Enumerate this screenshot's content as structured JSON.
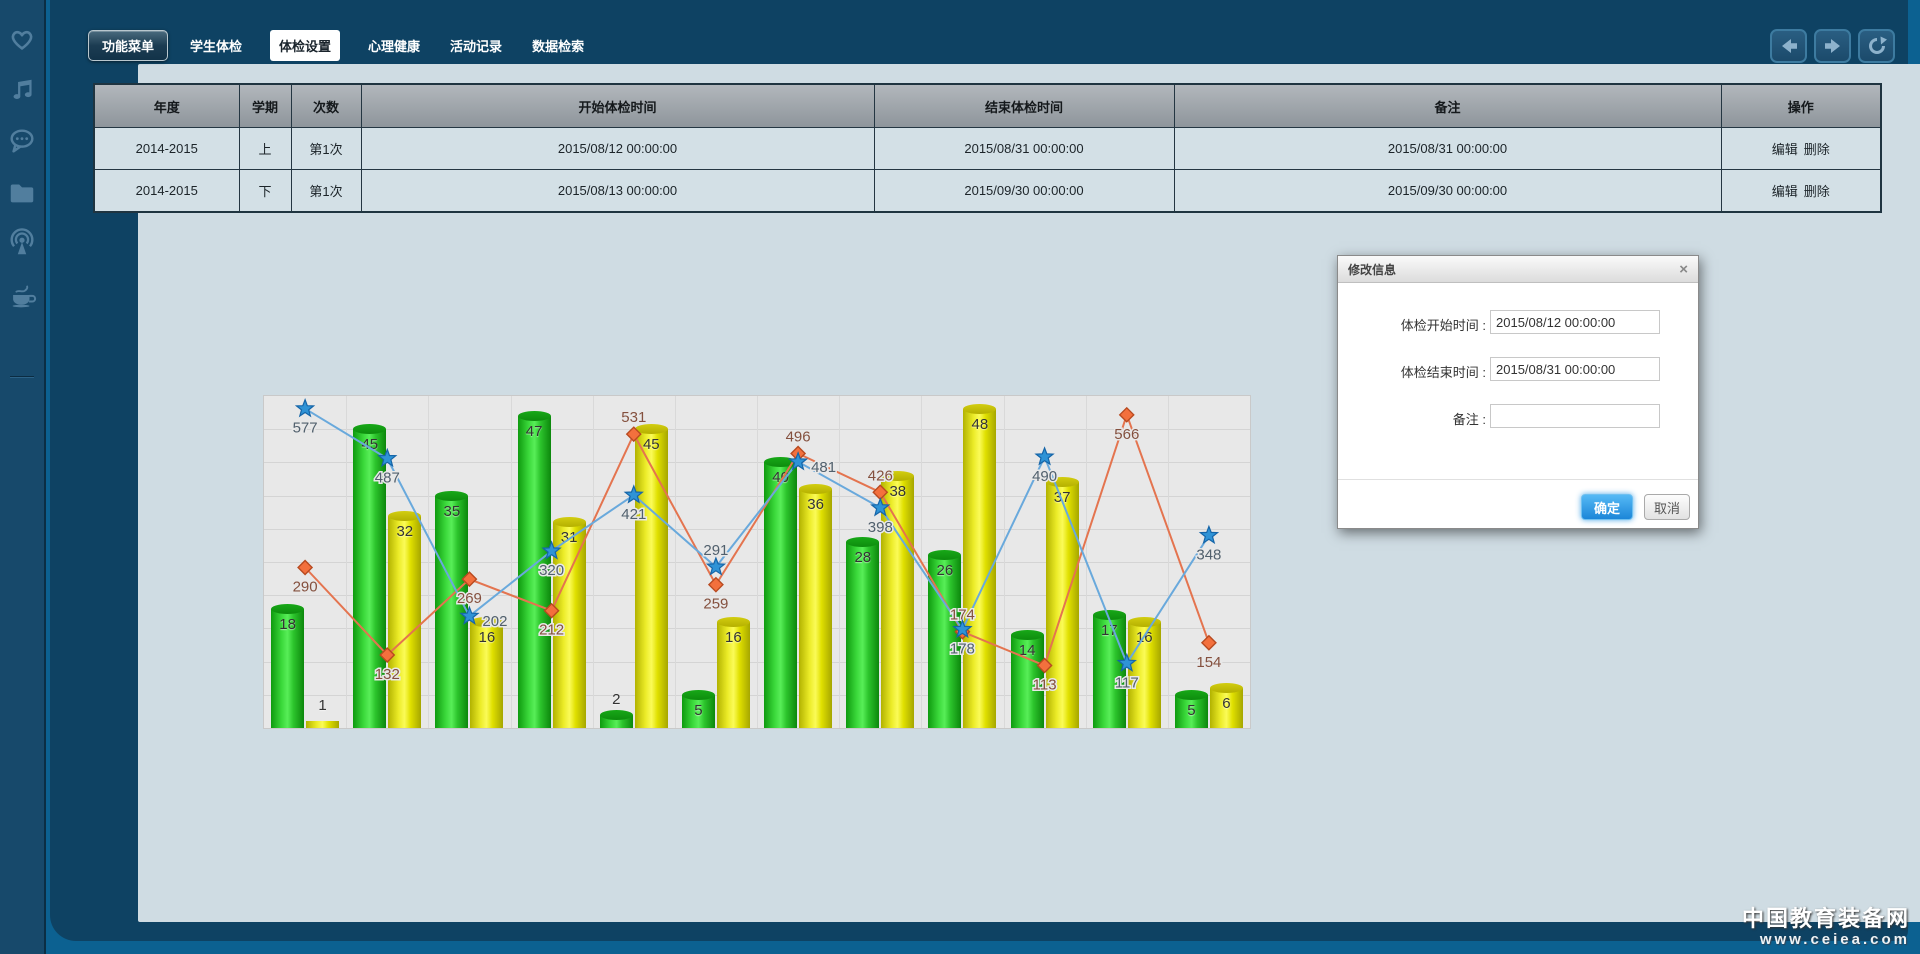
{
  "nav": {
    "menu_button": "功能菜单",
    "tabs": [
      {
        "label": "学生体检",
        "active": false
      },
      {
        "label": "体检设置",
        "active": true
      },
      {
        "label": "心理健康",
        "active": false
      },
      {
        "label": "活动记录",
        "active": false
      },
      {
        "label": "数据检索",
        "active": false
      }
    ]
  },
  "table": {
    "headers": [
      "年度",
      "学期",
      "次数",
      "开始体检时间",
      "结束体检时间",
      "备注",
      "操作"
    ],
    "rows": [
      [
        "2014-2015",
        "上",
        "第1次",
        "2015/08/12 00:00:00",
        "2015/08/31 00:00:00",
        "2015/08/31 00:00:00"
      ],
      [
        "2014-2015",
        "下",
        "第1次",
        "2015/08/13 00:00:00",
        "2015/09/30 00:00:00",
        "2015/09/30 00:00:00"
      ]
    ],
    "action_labels": [
      "编辑",
      "删除"
    ]
  },
  "chart_data": {
    "type": "bar",
    "title": "",
    "xlabel": "",
    "ylabel": "",
    "grid": true,
    "legend": "none",
    "data_labels": true,
    "bar_axis": {
      "min": 0,
      "max": 50
    },
    "line_axis": {
      "min": 0,
      "max": 600
    },
    "series": [
      {
        "name": "green-bars",
        "type": "bar",
        "color": "#2dbe2d",
        "values": [
          18,
          45,
          35,
          47,
          2,
          5,
          40,
          28,
          26,
          14,
          17,
          5
        ]
      },
      {
        "name": "yellow-bars",
        "type": "bar",
        "color": "#e3e000",
        "values": [
          1,
          32,
          16,
          31,
          45,
          16,
          36,
          38,
          48,
          37,
          16,
          6
        ]
      },
      {
        "name": "blue-star-line",
        "type": "line",
        "color": "#69a9dc",
        "marker": "star",
        "values": [
          577,
          487,
          202,
          320,
          421,
          291,
          481,
          398,
          178,
          490,
          117,
          348
        ],
        "label_side": [
          "below",
          "below",
          "right",
          "below",
          "below",
          "above",
          "right",
          "below",
          "below",
          "below",
          "below",
          "below"
        ]
      },
      {
        "name": "orange-diamond-line",
        "type": "line",
        "color": "#e4744f",
        "marker": "diamond",
        "values": [
          290,
          132,
          269,
          212,
          531,
          259,
          496,
          426,
          174,
          113,
          566,
          154
        ],
        "label_side": [
          "below",
          "below",
          "below",
          "below",
          "above",
          "below",
          "above",
          "above",
          "above",
          "below",
          "below",
          "below"
        ]
      }
    ]
  },
  "modal": {
    "title": "修改信息",
    "close_label": "×",
    "fields": [
      {
        "label": "体检开始时间 :",
        "value": "2015/08/12 00:00:00"
      },
      {
        "label": "体检结束时间 :",
        "value": "2015/08/31 00:00:00"
      },
      {
        "label": "备注 :",
        "value": ""
      }
    ],
    "ok_label": "确定",
    "cancel_label": "取消"
  },
  "watermark": {
    "line1": "中国教育装备网",
    "line2": "www.ceiea.com"
  },
  "colors": {
    "frame": "#0e4263",
    "sidebar": "#17496b",
    "page_bg": "#0c6191",
    "content_bg": "#cfdce3",
    "table_header_bg": "#9aa1a7",
    "accent_button": "#2596e8"
  }
}
